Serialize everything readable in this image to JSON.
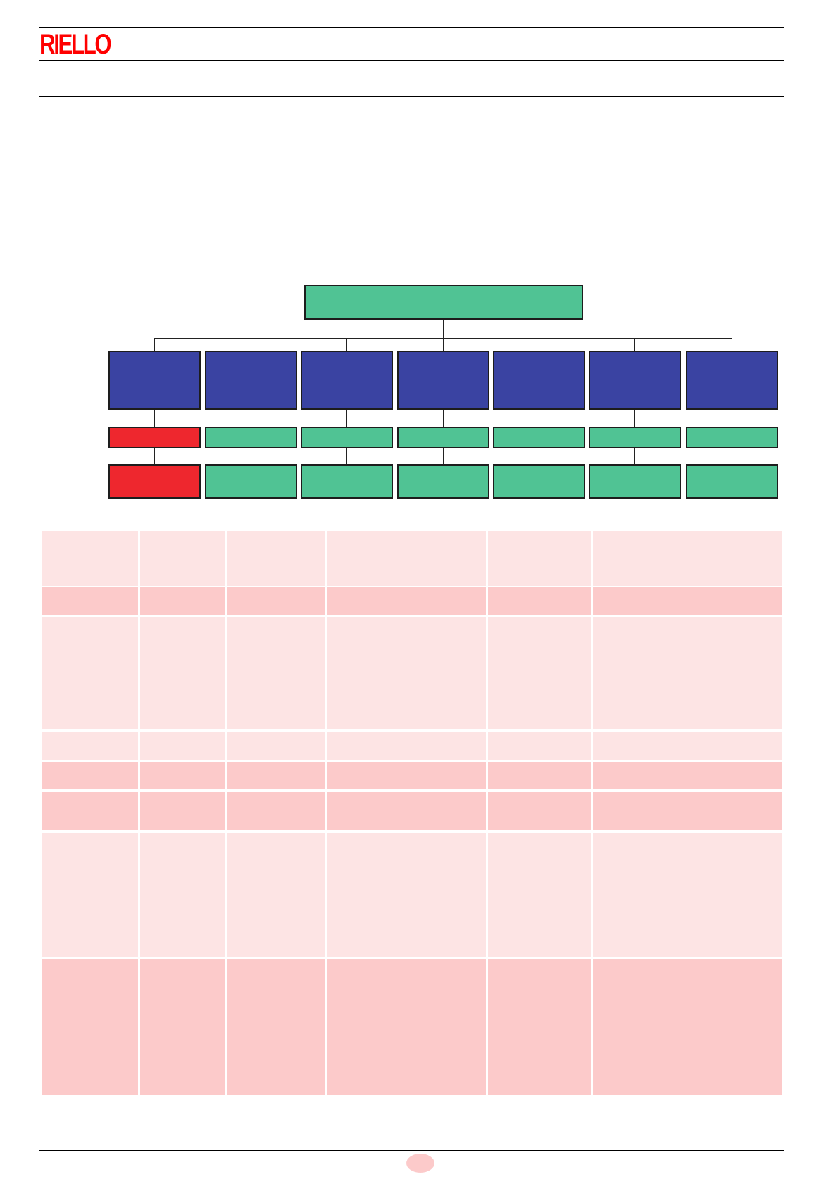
{
  "header": {
    "logo_text": "RIELLO"
  },
  "colors": {
    "brand_red": "#ff0000",
    "chart_green": "#50c394",
    "chart_blue": "#3a43a2",
    "chart_red": "#ee272e",
    "table_light": "#fde4e4",
    "table_dark": "#fccaca",
    "page_badge": "#fccaca"
  },
  "diagram": {
    "root": {
      "color": "green"
    },
    "columns": [
      {
        "top": "blue",
        "middle": "red",
        "bottom": "red"
      },
      {
        "top": "blue",
        "middle": "green",
        "bottom": "green"
      },
      {
        "top": "blue",
        "middle": "green",
        "bottom": "green"
      },
      {
        "top": "blue",
        "middle": "green",
        "bottom": "green"
      },
      {
        "top": "blue",
        "middle": "green",
        "bottom": "green"
      },
      {
        "top": "blue",
        "middle": "green",
        "bottom": "green"
      },
      {
        "top": "blue",
        "middle": "green",
        "bottom": "green"
      }
    ]
  },
  "table": {
    "columns": 6,
    "row_shades": [
      "light",
      "dark",
      "light",
      "light",
      "dark",
      "dark",
      "light",
      "dark"
    ]
  }
}
